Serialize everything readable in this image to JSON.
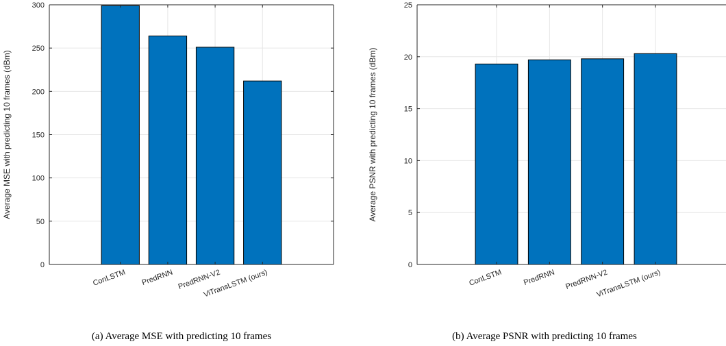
{
  "chart_data": [
    {
      "type": "bar",
      "categories": [
        "ConLSTM",
        "PredRNN",
        "PredRNN-V2",
        "ViTransLSTM (ours)"
      ],
      "values": [
        299,
        264,
        251,
        212
      ],
      "title": "",
      "xlabel": "",
      "ylabel": "Average MSE with predicting 10 frames (dBm)",
      "ylim": [
        0,
        300
      ],
      "yticks": [
        0,
        50,
        100,
        150,
        200,
        250,
        300
      ],
      "grid": true,
      "bar_color": "#0072BD",
      "caption": "(a) Average MSE with predicting 10 frames"
    },
    {
      "type": "bar",
      "categories": [
        "ConLSTM",
        "PredRNN",
        "PredRNN-V2",
        "ViTransLSTM (ours)"
      ],
      "values": [
        19.3,
        19.7,
        19.8,
        20.3
      ],
      "title": "",
      "xlabel": "",
      "ylabel": "Average PSNR with predicting 10 frames (dBm)",
      "ylim": [
        0,
        25
      ],
      "yticks": [
        0,
        5,
        10,
        15,
        20,
        25
      ],
      "grid": true,
      "bar_color": "#0072BD",
      "caption": "(b) Average PSNR with predicting 10 frames"
    }
  ]
}
